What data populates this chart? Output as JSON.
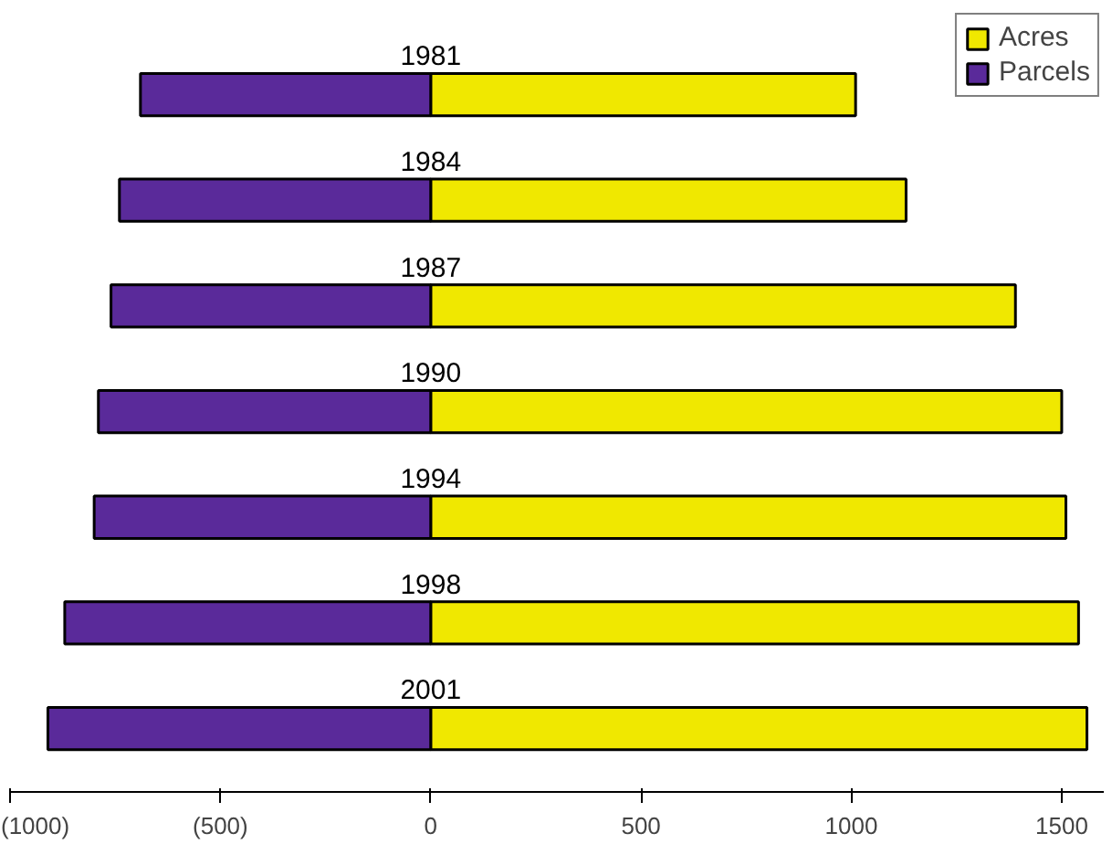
{
  "chart_data": {
    "type": "bar",
    "orientation": "horizontal",
    "stacked": true,
    "categories": [
      "1981",
      "1984",
      "1987",
      "1990",
      "1994",
      "1998",
      "2001"
    ],
    "series": [
      {
        "name": "Acres",
        "color": "#f0e800",
        "values": [
          1010,
          1130,
          1390,
          1500,
          1510,
          1540,
          1560
        ]
      },
      {
        "name": "Parcels",
        "color": "#5a2a9a",
        "values": [
          -690,
          -740,
          -760,
          -790,
          -800,
          -870,
          -910
        ]
      }
    ],
    "xlim": [
      -1000,
      1600
    ],
    "xticks": [
      {
        "value": -1000,
        "label": "(1000)"
      },
      {
        "value": -500,
        "label": "(500)"
      },
      0,
      500,
      1000,
      1500
    ],
    "grid": false,
    "legend": "top right"
  }
}
